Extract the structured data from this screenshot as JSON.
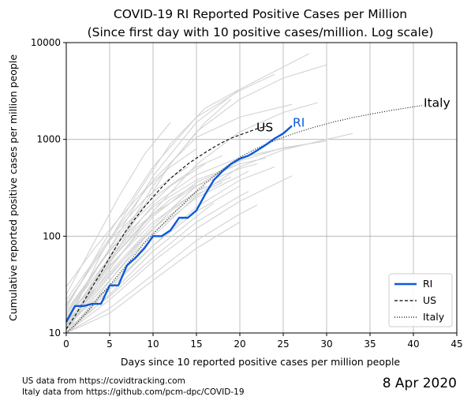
{
  "chart_data": {
    "type": "line",
    "title": "COVID-19 RI Reported Positive Cases per Million",
    "subtitle": "(Since first day with 10 positive cases/million. Log scale)",
    "xlabel": "Days since 10 reported positive cases per million people",
    "ylabel": "Cumulative reported positive cases per million people",
    "xlim": [
      0,
      45
    ],
    "ylim": [
      10,
      10000
    ],
    "yscale": "log",
    "x_ticks": [
      "0",
      "5",
      "10",
      "15",
      "20",
      "25",
      "30",
      "35",
      "40",
      "45"
    ],
    "y_ticks": [
      "10",
      "100",
      "1000",
      "10000"
    ],
    "grid": true,
    "legend_position": "lower-right",
    "legend": [
      "RI",
      "US",
      "Italy"
    ],
    "end_labels": {
      "us": "US",
      "ri": "RI",
      "italy": "Italy"
    },
    "colors": {
      "ri": "#0b5ad9",
      "us": "#000000",
      "italy": "#000000",
      "background": "#d3d3d3",
      "grid": "#b0b0b0"
    },
    "series": [
      {
        "name": "RI",
        "style": "solid",
        "x": [
          0,
          1,
          2,
          3,
          4,
          5,
          6,
          7,
          8,
          9,
          10,
          11,
          12,
          13,
          14,
          15,
          16,
          17,
          18,
          19,
          20,
          21,
          22,
          23,
          24,
          25,
          26
        ],
        "y": [
          13,
          19,
          19,
          20,
          20,
          31,
          31,
          50,
          60,
          75,
          100,
          100,
          115,
          155,
          155,
          185,
          270,
          380,
          470,
          560,
          630,
          680,
          770,
          880,
          1020,
          1150,
          1380
        ]
      },
      {
        "name": "US",
        "style": "dashed",
        "x": [
          0,
          1,
          2,
          3,
          4,
          5,
          6,
          7,
          8,
          9,
          10,
          11,
          12,
          13,
          14,
          15,
          16,
          17,
          18,
          19,
          20,
          21,
          22,
          23
        ],
        "y": [
          11,
          15,
          21,
          30,
          42,
          60,
          85,
          118,
          155,
          200,
          255,
          320,
          395,
          470,
          555,
          640,
          730,
          830,
          930,
          1030,
          1110,
          1200,
          1290,
          1360
        ]
      },
      {
        "name": "Italy",
        "style": "dotted",
        "x": [
          0,
          1,
          2,
          3,
          4,
          5,
          6,
          7,
          8,
          9,
          10,
          11,
          12,
          13,
          14,
          15,
          16,
          17,
          18,
          19,
          20,
          21,
          22,
          23,
          24,
          25,
          26,
          27,
          28,
          29,
          30,
          31,
          32,
          33,
          34,
          35,
          36,
          37,
          38,
          39,
          40,
          41
        ],
        "y": [
          10,
          12,
          15,
          19,
          25,
          31,
          40,
          51,
          66,
          85,
          105,
          130,
          160,
          195,
          240,
          290,
          350,
          415,
          490,
          570,
          650,
          730,
          810,
          890,
          970,
          1050,
          1130,
          1210,
          1290,
          1370,
          1450,
          1530,
          1600,
          1680,
          1750,
          1820,
          1890,
          1960,
          2030,
          2100,
          2170,
          2240
        ]
      }
    ],
    "background_series": [
      {
        "x": [
          0,
          5,
          10,
          15,
          20,
          25,
          28
        ],
        "y": [
          14,
          75,
          420,
          1500,
          3300,
          5600,
          7700
        ]
      },
      {
        "x": [
          0,
          5,
          10,
          15,
          20,
          25,
          30
        ],
        "y": [
          10,
          60,
          330,
          1200,
          2600,
          4300,
          5900
        ]
      },
      {
        "x": [
          0,
          5,
          10,
          15,
          20,
          24
        ],
        "y": [
          18,
          110,
          520,
          1700,
          3200,
          4700
        ]
      },
      {
        "x": [
          0,
          4,
          8,
          12,
          16,
          20
        ],
        "y": [
          12,
          65,
          260,
          900,
          2100,
          3300
        ]
      },
      {
        "x": [
          0,
          4,
          8,
          12,
          16,
          19
        ],
        "y": [
          10,
          38,
          150,
          560,
          1500,
          2600
        ]
      },
      {
        "x": [
          0,
          5,
          10,
          15,
          20,
          26
        ],
        "y": [
          22,
          95,
          380,
          1050,
          1700,
          2300
        ]
      },
      {
        "x": [
          0,
          5,
          10,
          15,
          20,
          25,
          29
        ],
        "y": [
          11,
          45,
          180,
          550,
          1200,
          1900,
          2400
        ]
      },
      {
        "x": [
          0,
          3,
          6,
          9,
          12
        ],
        "y": [
          25,
          80,
          250,
          700,
          1500
        ]
      },
      {
        "x": [
          0,
          5,
          10,
          15,
          20,
          25,
          30,
          33
        ],
        "y": [
          10,
          30,
          100,
          260,
          520,
          780,
          1000,
          1150
        ]
      },
      {
        "x": [
          0,
          5,
          10,
          15,
          20,
          25,
          30
        ],
        "y": [
          13,
          42,
          130,
          330,
          600,
          820,
          960
        ]
      },
      {
        "x": [
          0,
          5,
          10,
          15,
          20,
          25,
          27
        ],
        "y": [
          16,
          60,
          210,
          430,
          650,
          810,
          860
        ]
      },
      {
        "x": [
          0,
          5,
          10,
          15,
          20,
          23
        ],
        "y": [
          12,
          48,
          160,
          360,
          560,
          640
        ]
      },
      {
        "x": [
          0,
          5,
          10,
          15,
          20,
          22
        ],
        "y": [
          14,
          55,
          170,
          330,
          500,
          560
        ]
      },
      {
        "x": [
          0,
          5,
          10,
          15,
          20,
          21
        ],
        "y": [
          11,
          35,
          110,
          250,
          420,
          470
        ]
      },
      {
        "x": [
          0,
          5,
          10,
          15,
          20
        ],
        "y": [
          10,
          28,
          80,
          180,
          330
        ]
      },
      {
        "x": [
          0,
          5,
          10,
          15,
          20
        ],
        "y": [
          17,
          70,
          200,
          380,
          560
        ]
      },
      {
        "x": [
          0,
          5,
          10,
          15,
          18
        ],
        "y": [
          20,
          90,
          250,
          520,
          680
        ]
      },
      {
        "x": [
          0,
          5,
          10,
          15,
          18
        ],
        "y": [
          12,
          40,
          120,
          270,
          360
        ]
      },
      {
        "x": [
          0,
          5,
          10,
          15,
          17
        ],
        "y": [
          10,
          25,
          70,
          160,
          220
        ]
      },
      {
        "x": [
          0,
          5,
          10,
          15,
          19
        ],
        "y": [
          14,
          50,
          140,
          290,
          410
        ]
      },
      {
        "x": [
          0,
          4,
          8,
          12,
          16
        ],
        "y": [
          16,
          55,
          150,
          330,
          560
        ]
      },
      {
        "x": [
          0,
          4,
          8,
          12,
          16
        ],
        "y": [
          11,
          30,
          80,
          180,
          330
        ]
      },
      {
        "x": [
          0,
          4,
          8,
          12,
          15
        ],
        "y": [
          13,
          45,
          120,
          240,
          340
        ]
      },
      {
        "x": [
          0,
          3,
          6,
          9,
          12,
          14
        ],
        "y": [
          19,
          50,
          120,
          240,
          400,
          520
        ]
      },
      {
        "x": [
          0,
          3,
          6,
          9,
          12
        ],
        "y": [
          10,
          20,
          45,
          95,
          180
        ]
      },
      {
        "x": [
          0,
          3,
          6,
          9,
          11
        ],
        "y": [
          12,
          30,
          70,
          140,
          200
        ]
      },
      {
        "x": [
          0,
          3,
          6,
          9
        ],
        "y": [
          15,
          40,
          100,
          210
        ]
      },
      {
        "x": [
          0,
          2,
          4,
          6,
          8
        ],
        "y": [
          11,
          22,
          45,
          85,
          150
        ]
      },
      {
        "x": [
          0,
          5,
          10,
          15,
          20,
          25,
          26
        ],
        "y": [
          10,
          22,
          55,
          120,
          230,
          380,
          420
        ]
      },
      {
        "x": [
          0,
          5,
          10,
          15,
          20,
          22
        ],
        "y": [
          10,
          18,
          40,
          90,
          170,
          210
        ]
      },
      {
        "x": [
          0,
          5,
          10,
          15,
          20,
          21
        ],
        "y": [
          11,
          24,
          60,
          140,
          260,
          290
        ]
      },
      {
        "x": [
          0,
          5,
          10,
          15,
          20,
          24
        ],
        "y": [
          12,
          30,
          80,
          200,
          380,
          520
        ]
      },
      {
        "x": [
          0,
          5,
          10,
          15,
          20
        ],
        "y": [
          10,
          16,
          35,
          75,
          140
        ]
      },
      {
        "x": [
          0,
          3,
          6,
          9,
          12,
          15
        ],
        "y": [
          30,
          70,
          150,
          300,
          520,
          800
        ]
      }
    ]
  },
  "footnotes": {
    "us_source": "US data from https://covidtracking.com",
    "italy_source": "Italy data from https://github.com/pcm-dpc/COVID-19"
  },
  "date": "8 Apr 2020"
}
